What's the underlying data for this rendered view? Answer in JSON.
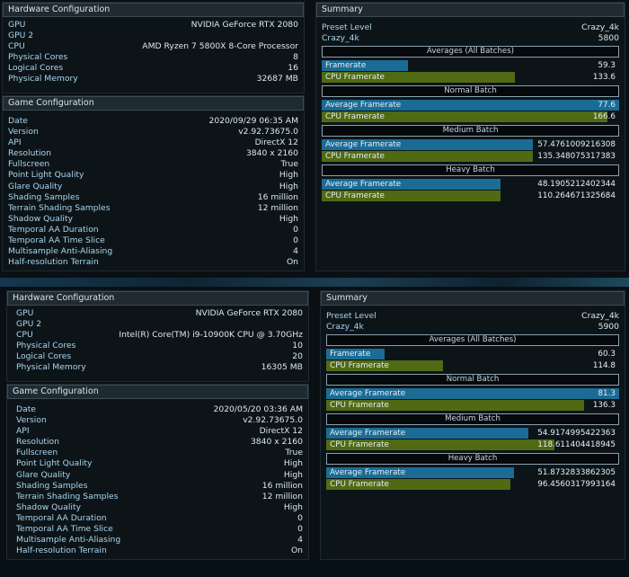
{
  "screens": [
    {
      "hw": {
        "title": "Hardware Configuration",
        "rows": [
          {
            "label": "GPU",
            "value": "NVIDIA GeForce RTX 2080"
          },
          {
            "label": "GPU 2",
            "value": ""
          },
          {
            "label": "CPU",
            "value": "AMD Ryzen 7 5800X 8-Core Processor"
          },
          {
            "label": "Physical Cores",
            "value": "8"
          },
          {
            "label": "Logical Cores",
            "value": "16"
          },
          {
            "label": "Physical Memory",
            "value": "32687 MB"
          }
        ]
      },
      "game": {
        "title": "Game Configuration",
        "rows": [
          {
            "label": "Date",
            "value": "2020/09/29 06:35 AM"
          },
          {
            "label": "Version",
            "value": "v2.92.73675.0"
          },
          {
            "label": "API",
            "value": "DirectX 12"
          },
          {
            "label": "Resolution",
            "value": "3840 x 2160"
          },
          {
            "label": "Fullscreen",
            "value": "True"
          },
          {
            "label": "Point Light Quality",
            "value": "High"
          },
          {
            "label": "Glare Quality",
            "value": "High"
          },
          {
            "label": "Shading Samples",
            "value": "16 million"
          },
          {
            "label": "Terrain Shading Samples",
            "value": "12 million"
          },
          {
            "label": "Shadow Quality",
            "value": "High"
          },
          {
            "label": "Temporal AA Duration",
            "value": "0"
          },
          {
            "label": "Temporal AA Time Slice",
            "value": "0"
          },
          {
            "label": "Multisample Anti-Aliasing",
            "value": "4"
          },
          {
            "label": "Half-resolution Terrain",
            "value": "On"
          }
        ]
      },
      "summary": {
        "title": "Summary",
        "preset_label": "Preset Level",
        "preset_value": "Crazy_4k",
        "preset_name": "Crazy_4k",
        "score": "5800",
        "sections": [
          {
            "title": "Averages (All Batches)",
            "bars": [
              {
                "label": "Framerate",
                "value": "59.3",
                "fill": 0.29,
                "color": "blue"
              },
              {
                "label": "CPU Framerate",
                "value": "133.6",
                "fill": 0.65,
                "color": "green"
              }
            ]
          },
          {
            "title": "Normal Batch",
            "bars": [
              {
                "label": "Average Framerate",
                "value": "77.6",
                "fill": 1.0,
                "color": "blue"
              },
              {
                "label": "CPU Framerate",
                "value": "166.6",
                "fill": 0.96,
                "color": "green"
              }
            ]
          },
          {
            "title": "Medium Batch",
            "bars": [
              {
                "label": "Average Framerate",
                "value": "57.4761009216308",
                "fill": 0.71,
                "color": "blue"
              },
              {
                "label": "CPU Framerate",
                "value": "135.348075317383",
                "fill": 0.71,
                "color": "green"
              }
            ]
          },
          {
            "title": "Heavy Batch",
            "bars": [
              {
                "label": "Average Framerate",
                "value": "48.1905212402344",
                "fill": 0.6,
                "color": "blue"
              },
              {
                "label": "CPU Framerate",
                "value": "110.264671325684",
                "fill": 0.6,
                "color": "green"
              }
            ]
          }
        ]
      }
    },
    {
      "hw": {
        "title": "Hardware Configuration",
        "rows": [
          {
            "label": "GPU",
            "value": "NVIDIA GeForce RTX 2080"
          },
          {
            "label": "GPU 2",
            "value": ""
          },
          {
            "label": "CPU",
            "value": "Intel(R) Core(TM) i9-10900K CPU @ 3.70GHz"
          },
          {
            "label": "Physical Cores",
            "value": "10"
          },
          {
            "label": "Logical Cores",
            "value": "20"
          },
          {
            "label": "Physical Memory",
            "value": "16305 MB"
          }
        ]
      },
      "game": {
        "title": "Game Configuration",
        "rows": [
          {
            "label": "Date",
            "value": "2020/05/20 03:36 AM"
          },
          {
            "label": "Version",
            "value": "v2.92.73675.0"
          },
          {
            "label": "API",
            "value": "DirectX 12"
          },
          {
            "label": "Resolution",
            "value": "3840 x 2160"
          },
          {
            "label": "Fullscreen",
            "value": "True"
          },
          {
            "label": "Point Light Quality",
            "value": "High"
          },
          {
            "label": "Glare Quality",
            "value": "High"
          },
          {
            "label": "Shading Samples",
            "value": "16 million"
          },
          {
            "label": "Terrain Shading Samples",
            "value": "12 million"
          },
          {
            "label": "Shadow Quality",
            "value": "High"
          },
          {
            "label": "Temporal AA Duration",
            "value": "0"
          },
          {
            "label": "Temporal AA Time Slice",
            "value": "0"
          },
          {
            "label": "Multisample Anti-Aliasing",
            "value": "4"
          },
          {
            "label": "Half-resolution Terrain",
            "value": "On"
          }
        ]
      },
      "summary": {
        "title": "Summary",
        "preset_label": "Preset Level",
        "preset_value": "Crazy_4k",
        "preset_name": "Crazy_4k",
        "score": "5900",
        "sections": [
          {
            "title": "Averages (All Batches)",
            "bars": [
              {
                "label": "Framerate",
                "value": "60.3",
                "fill": 0.2,
                "color": "blue"
              },
              {
                "label": "CPU Framerate",
                "value": "114.8",
                "fill": 0.4,
                "color": "green"
              }
            ]
          },
          {
            "title": "Normal Batch",
            "bars": [
              {
                "label": "Average Framerate",
                "value": "81.3",
                "fill": 1.0,
                "color": "blue"
              },
              {
                "label": "CPU Framerate",
                "value": "136.3",
                "fill": 0.88,
                "color": "green"
              }
            ]
          },
          {
            "title": "Medium Batch",
            "bars": [
              {
                "label": "Average Framerate",
                "value": "54.9174995422363",
                "fill": 0.69,
                "color": "blue"
              },
              {
                "label": "CPU Framerate",
                "value": "118.611404418945",
                "fill": 0.78,
                "color": "green"
              }
            ]
          },
          {
            "title": "Heavy Batch",
            "bars": [
              {
                "label": "Average Framerate",
                "value": "51.8732833862305",
                "fill": 0.64,
                "color": "blue"
              },
              {
                "label": "CPU Framerate",
                "value": "96.4560317993164",
                "fill": 0.63,
                "color": "green"
              }
            ]
          }
        ]
      }
    }
  ]
}
